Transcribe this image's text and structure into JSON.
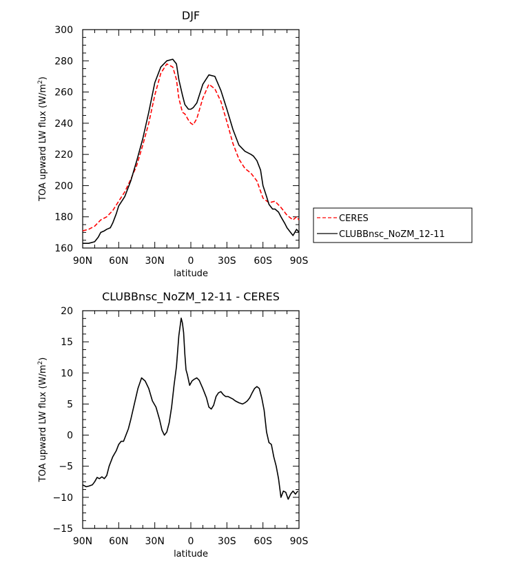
{
  "chart_data": [
    {
      "type": "line",
      "title": "DJF",
      "xlabel": "latitude",
      "ylabel": "TOA upward LW flux (W/m",
      "ylabel_sup": "2",
      "ylabel_close": ")",
      "xlim": [
        90,
        -90
      ],
      "ylim": [
        160,
        300
      ],
      "x_ticks": [
        90,
        60,
        30,
        0,
        -30,
        -60,
        -90
      ],
      "x_tick_labels": [
        "90N",
        "60N",
        "30N",
        "0",
        "30S",
        "60S",
        "90S"
      ],
      "y_ticks": [
        160,
        180,
        200,
        220,
        240,
        260,
        280,
        300
      ],
      "y_tick_labels": [
        "160",
        "180",
        "200",
        "220",
        "240",
        "260",
        "280",
        "300"
      ],
      "legend_position": "right",
      "series": [
        {
          "name": "CERES",
          "color": "#ff0000",
          "dash": "dashed",
          "x": [
            90,
            85,
            80,
            75,
            70,
            65,
            60,
            55,
            50,
            45,
            40,
            35,
            30,
            25,
            20,
            15,
            12,
            10,
            7,
            5,
            2,
            0,
            -2,
            -5,
            -10,
            -15,
            -20,
            -25,
            -30,
            -35,
            -40,
            -45,
            -50,
            -55,
            -60,
            -65,
            -70,
            -75,
            -80,
            -85,
            -88,
            -90
          ],
          "values": [
            171,
            172,
            174,
            178,
            180,
            184,
            190,
            196,
            204,
            213,
            226,
            240,
            258,
            272,
            278,
            276,
            268,
            256,
            247,
            246,
            242,
            240,
            239,
            243,
            256,
            265,
            262,
            254,
            241,
            227,
            217,
            211,
            208,
            203,
            192,
            189,
            190,
            186,
            181,
            178,
            180,
            178
          ]
        },
        {
          "name": "CLUBBnsc_NoZM_12-11",
          "color": "#000000",
          "dash": "solid",
          "x": [
            90,
            85,
            80,
            77,
            75,
            72,
            70,
            67,
            65,
            62,
            60,
            55,
            50,
            45,
            40,
            35,
            30,
            25,
            20,
            15,
            12,
            10,
            7,
            5,
            2,
            0,
            -2,
            -5,
            -10,
            -15,
            -20,
            -25,
            -30,
            -35,
            -40,
            -45,
            -50,
            -52,
            -55,
            -58,
            -60,
            -63,
            -65,
            -68,
            -70,
            -73,
            -75,
            -78,
            -80,
            -83,
            -85,
            -88,
            -90
          ],
          "values": [
            163,
            163,
            164,
            167,
            170,
            171,
            172,
            173,
            176,
            182,
            187,
            193,
            203,
            216,
            230,
            247,
            266,
            276,
            280,
            281,
            278,
            268,
            258,
            252,
            249,
            249,
            250,
            253,
            265,
            271,
            270,
            261,
            249,
            236,
            226,
            222,
            220,
            219,
            216,
            210,
            200,
            193,
            188,
            185,
            185,
            183,
            180,
            176,
            173,
            170,
            168,
            172,
            170
          ]
        }
      ]
    },
    {
      "type": "line",
      "title": "CLUBBnsc_NoZM_12-11 - CERES",
      "xlabel": "latitude",
      "ylabel": "TOA upward LW flux (W/m",
      "ylabel_sup": "2",
      "ylabel_close": ")",
      "xlim": [
        90,
        -90
      ],
      "ylim": [
        -15,
        20
      ],
      "x_ticks": [
        90,
        60,
        30,
        0,
        -30,
        -60,
        -90
      ],
      "x_tick_labels": [
        "90N",
        "60N",
        "30N",
        "0",
        "30S",
        "60S",
        "90S"
      ],
      "y_ticks": [
        -15,
        -10,
        -5,
        0,
        5,
        10,
        15,
        20
      ],
      "y_tick_labels": [
        "−15",
        "−10",
        "−5",
        "0",
        "5",
        "10",
        "15",
        "20"
      ],
      "series": [
        {
          "color": "#000000",
          "dash": "solid",
          "x": [
            90,
            87,
            85,
            82,
            80,
            78,
            76,
            74,
            72,
            70,
            68,
            65,
            62,
            60,
            58,
            56,
            54,
            52,
            50,
            47,
            44,
            41,
            38,
            35,
            32,
            29,
            26,
            24,
            22,
            20,
            18,
            16,
            14,
            12,
            10,
            8,
            7,
            6,
            5,
            4,
            3,
            1,
            -1,
            -3,
            -5,
            -7,
            -10,
            -13,
            -15,
            -17,
            -19,
            -21,
            -23,
            -25,
            -27,
            -29,
            -31,
            -33,
            -35,
            -37,
            -40,
            -43,
            -45,
            -47,
            -49,
            -51,
            -53,
            -55,
            -57,
            -59,
            -61,
            -63,
            -65,
            -67,
            -69,
            -71,
            -73,
            -75,
            -77,
            -79,
            -81,
            -83,
            -85,
            -87,
            -89
          ],
          "values": [
            -8,
            -8.3,
            -8.2,
            -8,
            -7.5,
            -6.8,
            -7,
            -6.7,
            -7,
            -6.5,
            -5,
            -3.5,
            -2.5,
            -1.5,
            -1,
            -1,
            0,
            1,
            2.5,
            5,
            7.5,
            9.2,
            8.7,
            7.5,
            5.5,
            4.5,
            2.5,
            0.8,
            0,
            0.5,
            2,
            4.5,
            8,
            11,
            16,
            18.8,
            18,
            16.5,
            13,
            10.5,
            9.8,
            8,
            8.7,
            9,
            9.2,
            8.8,
            7.5,
            6,
            4.5,
            4.2,
            4.8,
            6.2,
            6.8,
            7,
            6.5,
            6.2,
            6.2,
            6,
            5.8,
            5.5,
            5.2,
            5,
            5.2,
            5.5,
            6,
            6.8,
            7.5,
            7.8,
            7.5,
            6,
            4,
            0.5,
            -1.2,
            -1.5,
            -3.5,
            -5,
            -7,
            -10,
            -9,
            -9.2,
            -10.3,
            -9.5,
            -9,
            -9.5,
            -9
          ]
        }
      ]
    }
  ],
  "legend": {
    "items": [
      {
        "label": "CERES",
        "color": "#ff0000",
        "dash": "dashed"
      },
      {
        "label": "CLUBBnsc_NoZM_12-11",
        "color": "#000000",
        "dash": "solid"
      }
    ]
  }
}
